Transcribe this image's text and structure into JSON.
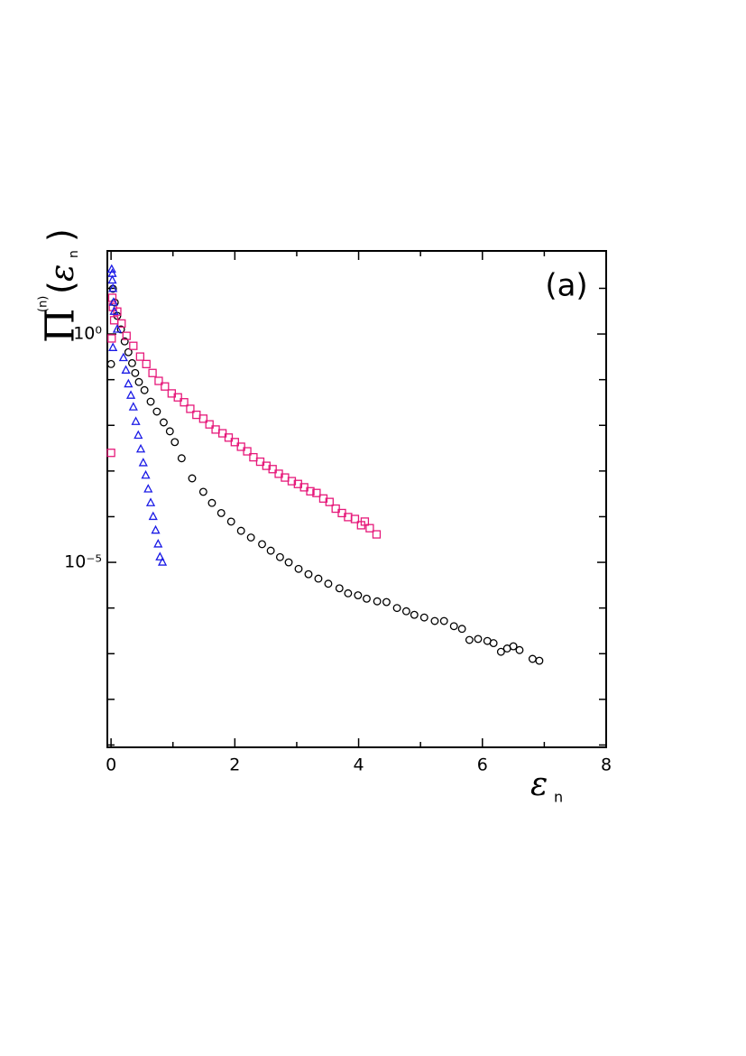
{
  "chart_data": {
    "type": "scatter",
    "annotation": "(a)",
    "xlabel_parts": [
      "ε",
      "n"
    ],
    "ylabel_parts": [
      "Π",
      "(n)",
      "(",
      "ε",
      "n",
      ")"
    ],
    "xlim": [
      -0.06,
      8
    ],
    "xticks": [
      0,
      2,
      4,
      6,
      8
    ],
    "xminorticks": [
      1,
      3,
      5,
      7
    ],
    "ylim": [
      8.9e-10,
      66
    ],
    "ylog": true,
    "yticks": [
      {
        "value": 1,
        "label": "10⁰"
      },
      {
        "value": 1e-05,
        "label": "10⁻⁵"
      }
    ],
    "yminorticks": [
      10,
      0.1,
      0.01,
      0.001,
      0.0001,
      1e-06,
      1e-07,
      1e-08,
      1e-09
    ],
    "series": [
      {
        "marker": "circle",
        "color": "#000000",
        "x": [
          0.0,
          0.03,
          0.06,
          0.1,
          0.16,
          0.22,
          0.28,
          0.34,
          0.39,
          0.45,
          0.54,
          0.64,
          0.74,
          0.85,
          0.95,
          1.03,
          1.14,
          1.31,
          1.49,
          1.63,
          1.78,
          1.94,
          2.1,
          2.26,
          2.44,
          2.58,
          2.73,
          2.87,
          3.03,
          3.19,
          3.35,
          3.51,
          3.69,
          3.83,
          3.99,
          4.13,
          4.3,
          4.45,
          4.62,
          4.77,
          4.9,
          5.06,
          5.23,
          5.38,
          5.54,
          5.67,
          5.79,
          5.93,
          6.08,
          6.18,
          6.3,
          6.4,
          6.5,
          6.6,
          6.81,
          6.92
        ],
        "values": [
          0.22,
          9.8,
          4.9,
          2.5,
          1.26,
          0.69,
          0.4,
          0.23,
          0.14,
          0.089,
          0.059,
          0.033,
          0.02,
          0.0116,
          0.0074,
          0.0043,
          0.0019,
          0.00069,
          0.00035,
          0.0002,
          0.00012,
          7.8e-05,
          4.9e-05,
          3.5e-05,
          2.5e-05,
          1.8e-05,
          1.3e-05,
          1e-05,
          7.2e-06,
          5.5e-06,
          4.4e-06,
          3.4e-06,
          2.7e-06,
          2.1e-06,
          1.9e-06,
          1.6e-06,
          1.4e-06,
          1.35e-06,
          1e-06,
          8.5e-07,
          7.1e-07,
          6.2e-07,
          5.2e-07,
          5.2e-07,
          4e-07,
          3.5e-07,
          2e-07,
          2.1e-07,
          1.9e-07,
          1.7e-07,
          1.1e-07,
          1.3e-07,
          1.45e-07,
          1.2e-07,
          7.7e-08,
          7e-08
        ]
      },
      {
        "marker": "square",
        "color": "#e6197a",
        "x": [
          0.0,
          0.01,
          0.02,
          0.03,
          0.05,
          0.1,
          0.17,
          0.25,
          0.36,
          0.47,
          0.57,
          0.67,
          0.77,
          0.87,
          0.98,
          1.08,
          1.18,
          1.28,
          1.38,
          1.49,
          1.59,
          1.69,
          1.8,
          1.9,
          2.0,
          2.1,
          2.2,
          2.3,
          2.41,
          2.51,
          2.61,
          2.71,
          2.81,
          2.92,
          3.02,
          3.12,
          3.22,
          3.32,
          3.43,
          3.53,
          3.63,
          3.73,
          3.83,
          3.94,
          4.04,
          4.1,
          4.18,
          4.29
        ],
        "values": [
          0.0025,
          0.8,
          6.2,
          3.9,
          2.0,
          3.1,
          1.7,
          0.91,
          0.55,
          0.32,
          0.22,
          0.14,
          0.094,
          0.071,
          0.05,
          0.041,
          0.032,
          0.023,
          0.017,
          0.014,
          0.0105,
          0.0081,
          0.0067,
          0.0054,
          0.0043,
          0.0034,
          0.0027,
          0.002,
          0.0016,
          0.0013,
          0.0011,
          0.00087,
          0.00072,
          0.0006,
          0.00052,
          0.00044,
          0.00036,
          0.00033,
          0.00025,
          0.00021,
          0.00015,
          0.00012,
          9.8e-05,
          8.9e-05,
          6.5e-05,
          7.8e-05,
          5.6e-05,
          4.1e-05
        ]
      },
      {
        "marker": "triangle",
        "color": "#1a1ae6",
        "x": [
          0.01,
          0.02,
          0.02,
          0.03,
          0.04,
          0.05,
          0.03,
          0.1,
          0.2,
          0.24,
          0.28,
          0.32,
          0.36,
          0.4,
          0.44,
          0.48,
          0.52,
          0.56,
          0.6,
          0.64,
          0.68,
          0.72,
          0.76,
          0.79,
          0.83
        ],
        "values": [
          26,
          21,
          15,
          9.8,
          4.9,
          3.1,
          0.5,
          1.26,
          0.3,
          0.16,
          0.08,
          0.045,
          0.025,
          0.012,
          0.006,
          0.003,
          0.0015,
          0.0008,
          0.0004,
          0.0002,
          0.0001,
          5e-05,
          2.5e-05,
          1.3e-05,
          1e-05
        ]
      }
    ]
  }
}
